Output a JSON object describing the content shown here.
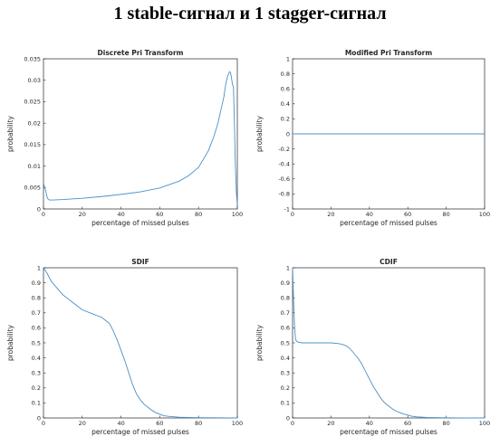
{
  "page": {
    "title": "1 stable-сигнал и 1 stagger-сигнал"
  },
  "colors": {
    "series": "#4a90c8",
    "axis": "#262626"
  },
  "chart_data": [
    {
      "type": "line",
      "title": "Discrete Pri Transform",
      "xlabel": "percentage of missed pulses",
      "ylabel": "probability",
      "xlim": [
        0,
        100
      ],
      "ylim": [
        0,
        0.035
      ],
      "xticks": [
        0,
        20,
        40,
        60,
        80,
        100
      ],
      "yticks": [
        0,
        0.005,
        0.01,
        0.015,
        0.02,
        0.025,
        0.03,
        0.035
      ],
      "ytick_labels": [
        "0",
        "0.005",
        "0.01",
        "0.015",
        "0.02",
        "0.025",
        "0.03",
        "0.035"
      ],
      "series": [
        {
          "x": [
            0,
            1,
            2,
            3,
            5,
            10,
            20,
            30,
            40,
            50,
            60,
            70,
            75,
            80,
            85,
            88,
            90,
            92,
            93,
            94,
            95,
            96,
            96.5,
            97,
            97.5,
            98,
            98.5,
            99,
            99.5,
            100
          ],
          "values": [
            0.006,
            0.0045,
            0.0025,
            0.0021,
            0.0021,
            0.0022,
            0.0025,
            0.0029,
            0.0034,
            0.004,
            0.0049,
            0.0065,
            0.0078,
            0.0097,
            0.0135,
            0.017,
            0.02,
            0.024,
            0.026,
            0.029,
            0.031,
            0.032,
            0.0318,
            0.0305,
            0.029,
            0.0285,
            0.02,
            0.01,
            0.004,
            0.001
          ]
        }
      ]
    },
    {
      "type": "line",
      "title": "Modified Pri Transform",
      "xlabel": "percentage of missed pulses",
      "ylabel": "probability",
      "xlim": [
        0,
        100
      ],
      "ylim": [
        -1,
        1
      ],
      "xticks": [
        0,
        20,
        40,
        60,
        80,
        100
      ],
      "yticks": [
        -1,
        -0.8,
        -0.6,
        -0.4,
        -0.2,
        0,
        0.2,
        0.4,
        0.6,
        0.8,
        1
      ],
      "ytick_labels": [
        "-1",
        "-0.8",
        "-0.6",
        "-0.4",
        "-0.2",
        "0",
        "0.2",
        "0.4",
        "0.6",
        "0.8",
        "1"
      ],
      "series": [
        {
          "x": [
            0,
            100
          ],
          "values": [
            0,
            0
          ]
        }
      ]
    },
    {
      "type": "line",
      "title": "SDIF",
      "xlabel": "percentage of missed pulses",
      "ylabel": "probability",
      "xlim": [
        0,
        100
      ],
      "ylim": [
        0,
        1
      ],
      "xticks": [
        0,
        20,
        40,
        60,
        80,
        100
      ],
      "yticks": [
        0,
        0.1,
        0.2,
        0.3,
        0.4,
        0.5,
        0.6,
        0.7,
        0.8,
        0.9,
        1
      ],
      "ytick_labels": [
        "0",
        "0.1",
        "0.2",
        "0.3",
        "0.4",
        "0.5",
        "0.6",
        "0.7",
        "0.8",
        "0.9",
        "1"
      ],
      "series": [
        {
          "x": [
            0,
            2,
            4,
            6,
            8,
            10,
            12,
            14,
            16,
            18,
            20,
            22,
            24,
            26,
            28,
            30,
            32,
            34,
            36,
            38,
            40,
            42,
            44,
            46,
            48,
            50,
            52,
            54,
            56,
            58,
            60,
            62,
            65,
            70,
            75,
            80,
            90,
            100
          ],
          "values": [
            1,
            0.96,
            0.91,
            0.88,
            0.85,
            0.82,
            0.8,
            0.78,
            0.76,
            0.74,
            0.72,
            0.71,
            0.7,
            0.69,
            0.68,
            0.67,
            0.65,
            0.63,
            0.58,
            0.52,
            0.45,
            0.38,
            0.3,
            0.22,
            0.16,
            0.12,
            0.09,
            0.07,
            0.05,
            0.035,
            0.025,
            0.015,
            0.01,
            0.005,
            0.003,
            0.002,
            0.001,
            0
          ]
        }
      ]
    },
    {
      "type": "line",
      "title": "CDIF",
      "xlabel": "percentage of missed pulses",
      "ylabel": "probability",
      "xlim": [
        0,
        100
      ],
      "ylim": [
        0,
        1
      ],
      "xticks": [
        0,
        20,
        40,
        60,
        80,
        100
      ],
      "yticks": [
        0,
        0.1,
        0.2,
        0.3,
        0.4,
        0.5,
        0.6,
        0.7,
        0.8,
        0.9,
        1
      ],
      "ytick_labels": [
        "0",
        "0.1",
        "0.2",
        "0.3",
        "0.4",
        "0.5",
        "0.6",
        "0.7",
        "0.8",
        "0.9",
        "1"
      ],
      "series": [
        {
          "x": [
            0,
            0.5,
            1,
            1.5,
            2,
            3,
            5,
            10,
            15,
            20,
            24,
            26,
            28,
            30,
            32,
            34,
            36,
            38,
            40,
            42,
            44,
            46,
            48,
            50,
            52,
            54,
            56,
            58,
            60,
            62,
            65,
            70,
            80,
            90,
            100
          ],
          "values": [
            1,
            0.8,
            0.62,
            0.53,
            0.51,
            0.505,
            0.5,
            0.5,
            0.5,
            0.5,
            0.495,
            0.49,
            0.48,
            0.46,
            0.43,
            0.4,
            0.36,
            0.31,
            0.26,
            0.21,
            0.17,
            0.13,
            0.1,
            0.08,
            0.06,
            0.045,
            0.035,
            0.025,
            0.02,
            0.012,
            0.007,
            0.003,
            0.001,
            0,
            0
          ]
        }
      ]
    }
  ]
}
